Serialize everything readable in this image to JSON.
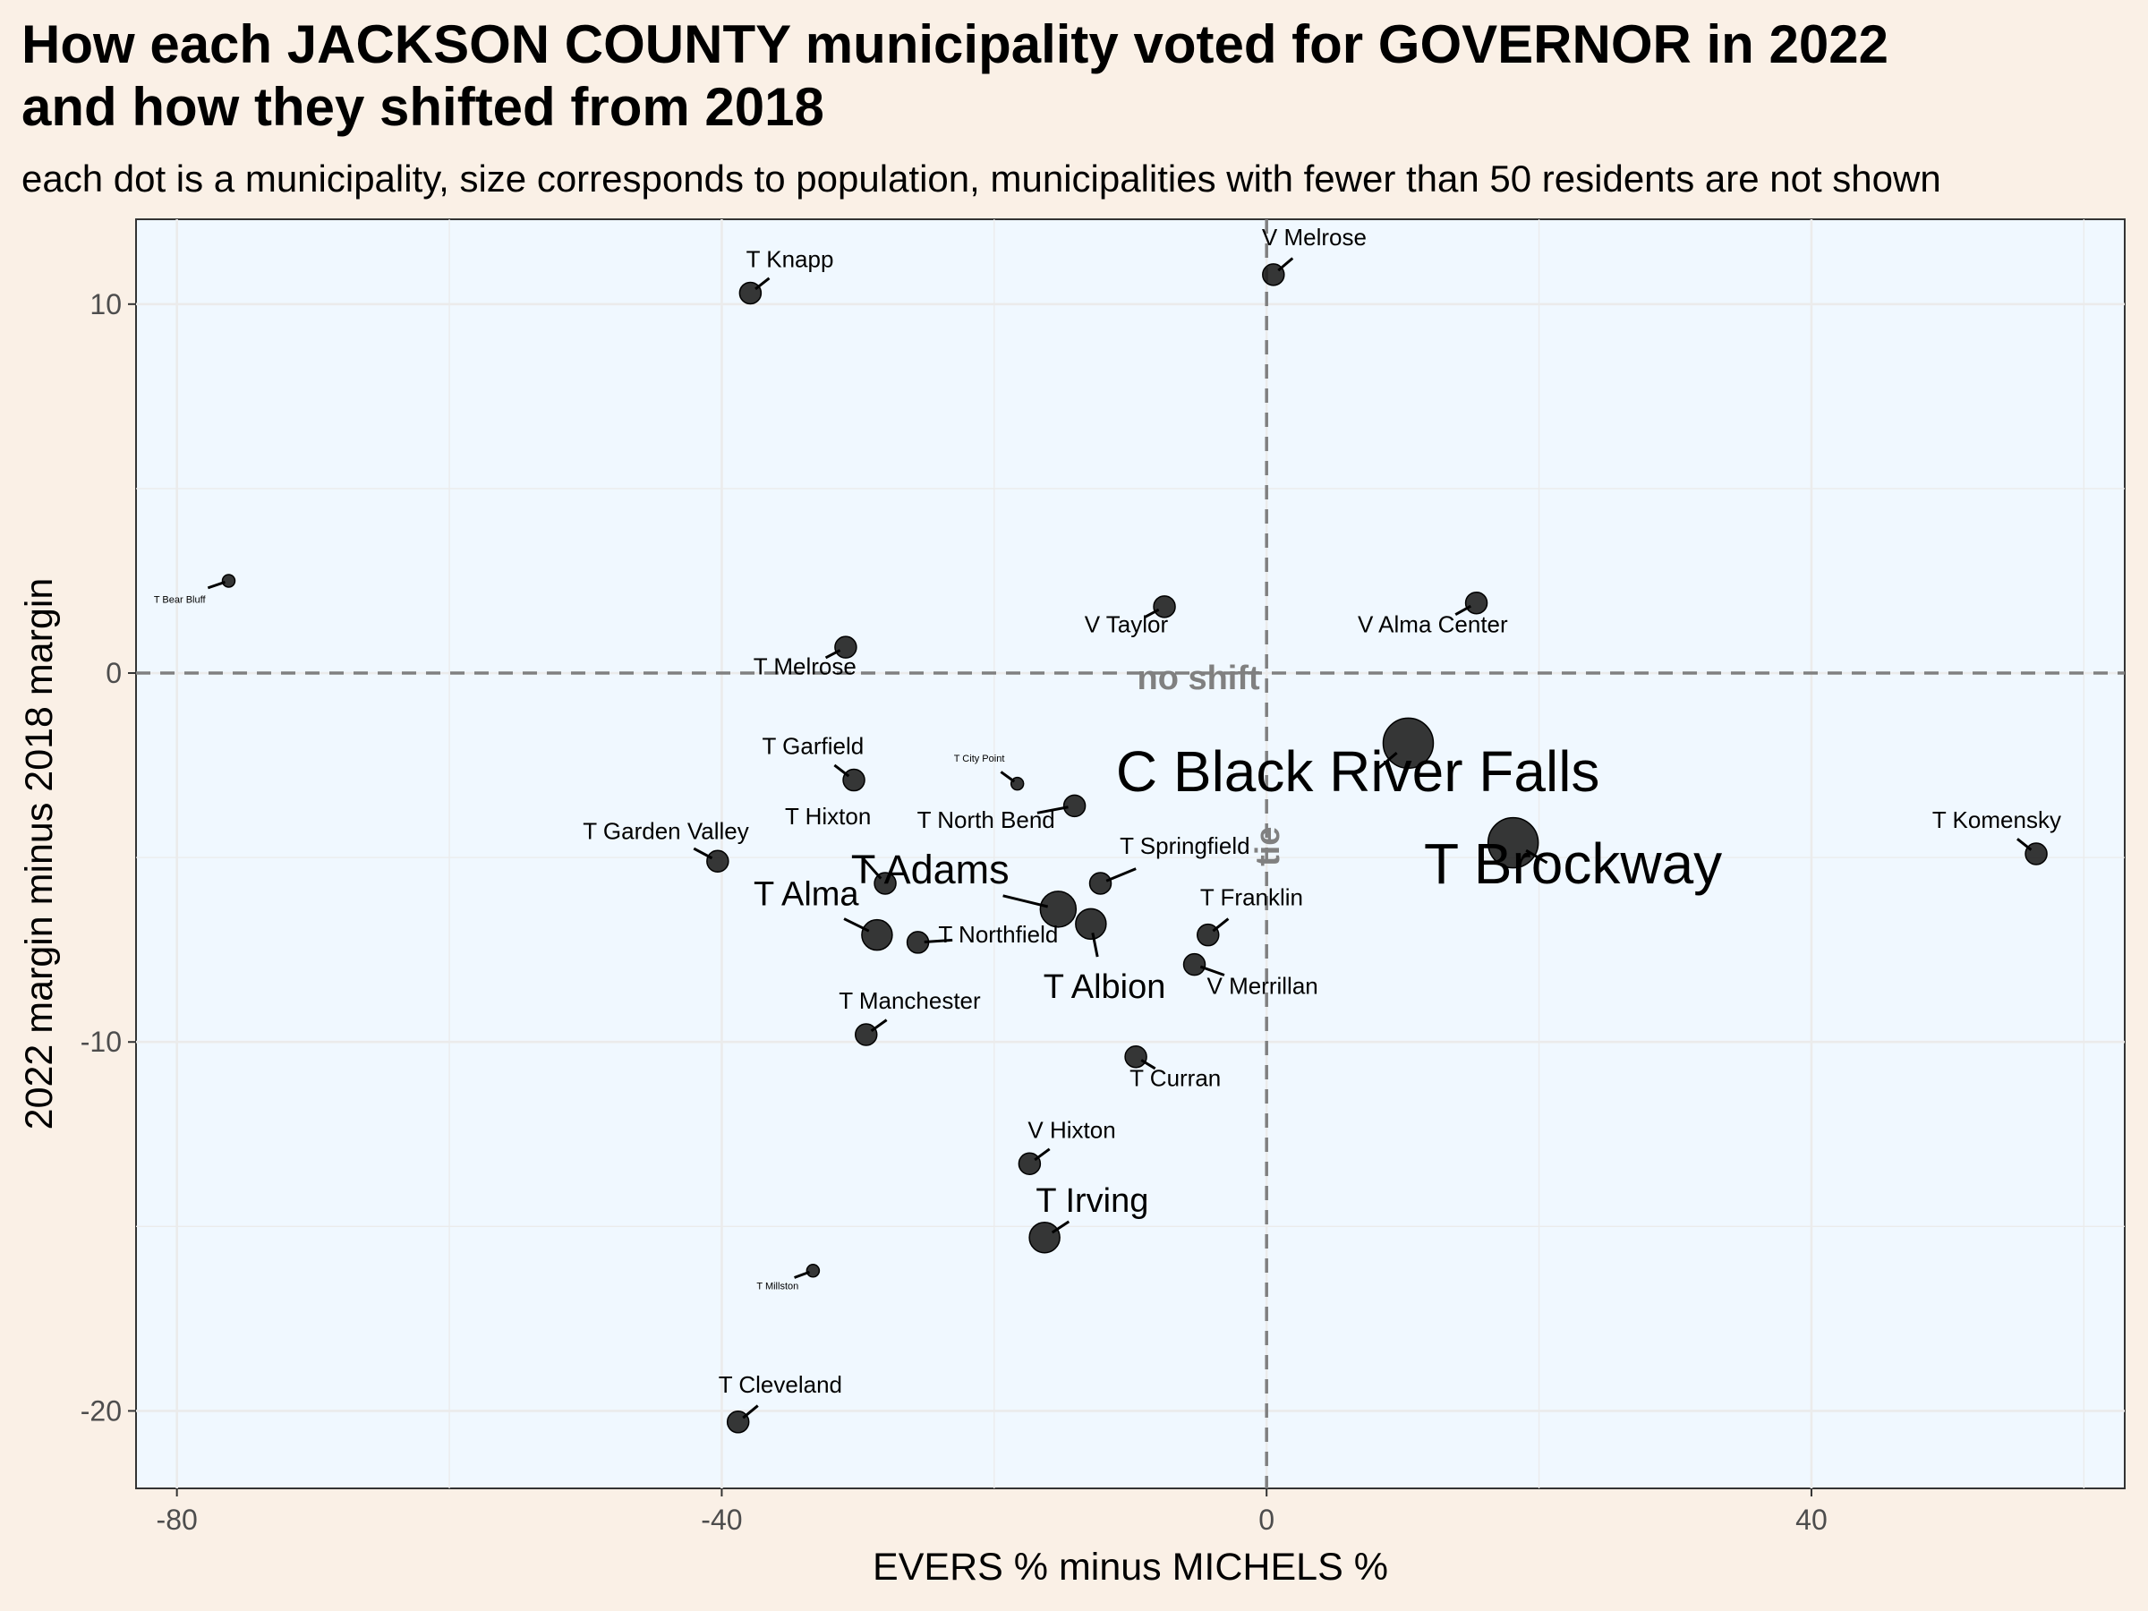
{
  "chart_data": {
    "type": "scatter",
    "title_line1": "How each JACKSON COUNTY municipality voted for GOVERNOR in 2022",
    "title_line2": "and how they shifted from 2018",
    "subtitle": "each dot is a municipality, size corresponds to population, municipalities with fewer than 50 residents are not shown",
    "xlabel": "EVERS % minus MICHELS %",
    "ylabel": "2022 margin minus 2018 margin",
    "xlim": [
      -83,
      63
    ],
    "ylim": [
      -22.1,
      12.3
    ],
    "x_ticks": [
      -80,
      -40,
      0,
      40
    ],
    "x_tick_labels": [
      "-80",
      "-40",
      "0",
      "40"
    ],
    "y_ticks": [
      -20,
      -10,
      0,
      10
    ],
    "y_tick_labels": [
      "-20",
      "-10",
      "0",
      "10"
    ],
    "grid": true,
    "colors": {
      "panel": "#f0f8ff",
      "background": "#faf0e6",
      "point": "#1a1a1a",
      "reference": "#808080",
      "grid": "#ebebeb"
    },
    "annotations": {
      "no_shift": "no shift",
      "tie": "tie"
    },
    "points": [
      {
        "label": "T Knapp",
        "x": -37.9,
        "y": 10.3,
        "size": 2,
        "lx": -35,
        "ly": 11.0
      },
      {
        "label": "V Melrose",
        "x": 0.5,
        "y": 10.8,
        "size": 2,
        "lx": 3.5,
        "ly": 11.6
      },
      {
        "label": "T Bear Bluff",
        "x": -76.2,
        "y": 2.5,
        "size": 1,
        "lx": -79.8,
        "ly": 1.9
      },
      {
        "label": "V Taylor",
        "x": -7.5,
        "y": 1.8,
        "size": 2,
        "lx": -10.3,
        "ly": 1.1
      },
      {
        "label": "V Alma Center",
        "x": 15.4,
        "y": 1.9,
        "size": 2,
        "lx": 12.2,
        "ly": 1.1
      },
      {
        "label": "T Melrose",
        "x": -30.9,
        "y": 0.7,
        "size": 2,
        "lx": -33.9,
        "ly": -0.03
      },
      {
        "label": "T Garfield",
        "x": -30.3,
        "y": -2.9,
        "size": 2,
        "lx": -33.3,
        "ly": -2.2
      },
      {
        "label": "T City Point",
        "x": -18.3,
        "y": -3.0,
        "size": 1,
        "lx": -21.1,
        "ly": -2.4
      },
      {
        "label": "C Black River Falls",
        "x": 10.4,
        "y": -1.9,
        "size": 5,
        "lx": 6.7,
        "ly": -3.2
      },
      {
        "label": "T North Bend",
        "x": -14.1,
        "y": -3.6,
        "size": 2,
        "lx": -20.6,
        "ly": -4.2
      },
      {
        "label": "T Komensky",
        "x": 56.5,
        "y": -4.9,
        "size": 2,
        "lx": 53.6,
        "ly": -4.2
      },
      {
        "label": "T Garden Valley",
        "x": -40.3,
        "y": -5.1,
        "size": 2,
        "lx": -44.1,
        "ly": -4.5
      },
      {
        "label": "T Hixton",
        "x": -28.0,
        "y": -5.7,
        "size": 2,
        "lx": -32.2,
        "ly": -4.1
      },
      {
        "label": "T Springfield",
        "x": -12.2,
        "y": -5.7,
        "size": 2,
        "lx": -6.0,
        "ly": -4.9
      },
      {
        "label": "T Brockway",
        "x": 18.1,
        "y": -4.6,
        "size": 5,
        "lx": 22.5,
        "ly": -5.7
      },
      {
        "label": "T Adams",
        "x": -15.3,
        "y": -6.4,
        "size": 4,
        "lx": -24.7,
        "ly": -5.7
      },
      {
        "label": "T Alma",
        "x": -28.6,
        "y": -7.1,
        "size": 3,
        "lx": -33.8,
        "ly": -6.3
      },
      {
        "label": "T Albion",
        "x": -12.9,
        "y": -6.8,
        "size": 3,
        "lx": -11.9,
        "ly": -8.8
      },
      {
        "label": "T Northfield",
        "x": -25.6,
        "y": -7.3,
        "size": 2,
        "lx": -19.7,
        "ly": -7.3
      },
      {
        "label": "T Franklin",
        "x": -4.3,
        "y": -7.1,
        "size": 2,
        "lx": -1.1,
        "ly": -6.3
      },
      {
        "label": "V Merrillan",
        "x": -5.3,
        "y": -7.9,
        "size": 2,
        "lx": -0.3,
        "ly": -8.7
      },
      {
        "label": "T Manchester",
        "x": -29.4,
        "y": -9.8,
        "size": 2,
        "lx": -26.2,
        "ly": -9.1
      },
      {
        "label": "T Curran",
        "x": -9.6,
        "y": -10.4,
        "size": 2,
        "lx": -6.7,
        "ly": -11.2
      },
      {
        "label": "V Hixton",
        "x": -17.4,
        "y": -13.3,
        "size": 2,
        "lx": -14.3,
        "ly": -12.6
      },
      {
        "label": "T Irving",
        "x": -16.3,
        "y": -15.3,
        "size": 3,
        "lx": -12.8,
        "ly": -14.6
      },
      {
        "label": "T Millston",
        "x": -33.3,
        "y": -16.2,
        "size": 1,
        "lx": -35.9,
        "ly": -16.7
      },
      {
        "label": "T Cleveland",
        "x": -38.8,
        "y": -20.3,
        "size": 2,
        "lx": -35.7,
        "ly": -19.5
      }
    ]
  }
}
